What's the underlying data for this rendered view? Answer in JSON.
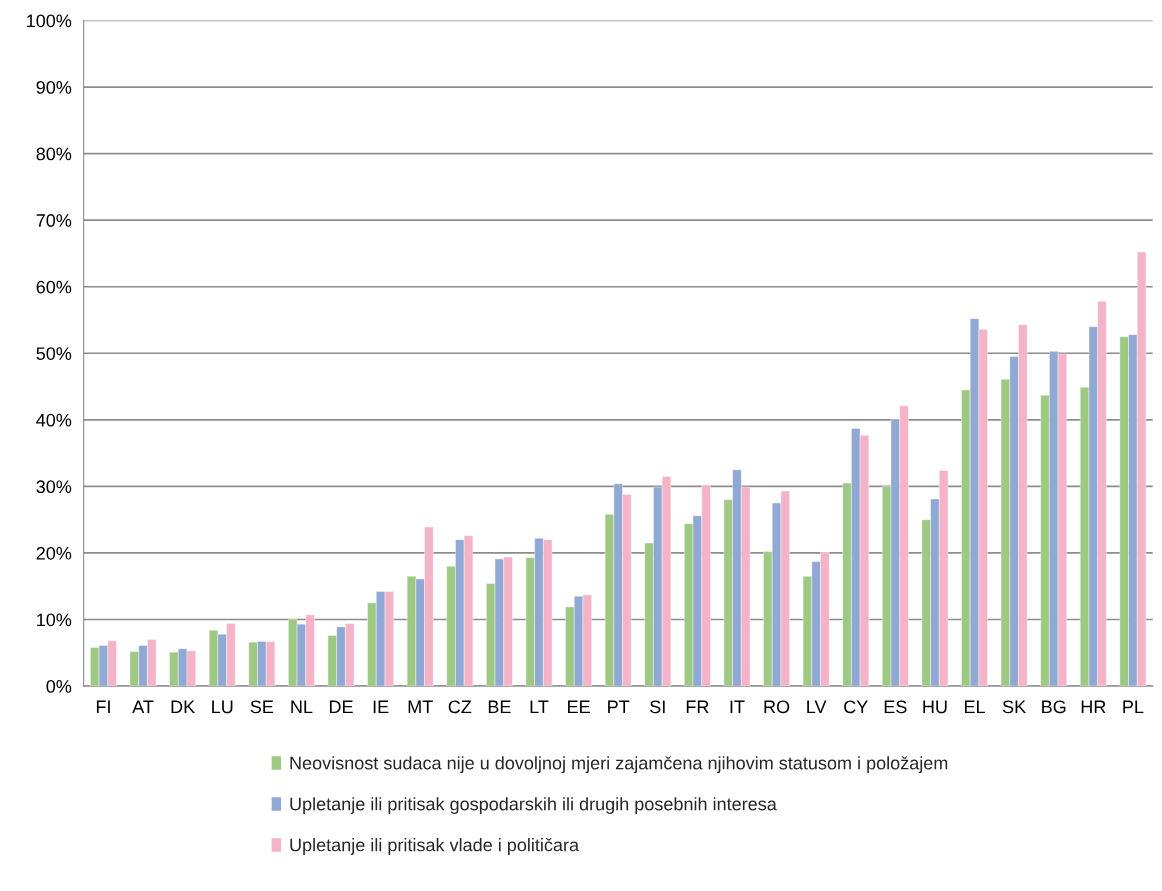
{
  "chart_data": {
    "type": "bar",
    "categories": [
      "FI",
      "AT",
      "DK",
      "LU",
      "SE",
      "NL",
      "DE",
      "IE",
      "MT",
      "CZ",
      "BE",
      "LT",
      "EE",
      "PT",
      "SI",
      "FR",
      "IT",
      "RO",
      "LV",
      "CY",
      "ES",
      "HU",
      "EL",
      "SK",
      "BG",
      "HR",
      "PL"
    ],
    "series": [
      {
        "name": "Neovisnost sudaca nije u dovoljnoj mjeri zajamčena njihovim statusom i položajem",
        "color": "#9dc983",
        "values": [
          5.8,
          5.2,
          5.1,
          8.4,
          6.6,
          10.0,
          7.6,
          12.5,
          16.5,
          18.0,
          15.4,
          19.3,
          11.9,
          25.8,
          21.5,
          24.4,
          28.0,
          20.2,
          16.5,
          30.5,
          30.0,
          25.0,
          44.5,
          46.1,
          43.7,
          44.9,
          52.5
        ]
      },
      {
        "name": "Upletanje ili pritisak gospodarskih ili drugih posebnih interesa",
        "color": "#8fa8d4",
        "values": [
          6.1,
          6.1,
          5.6,
          7.8,
          6.7,
          9.3,
          8.9,
          14.2,
          16.1,
          22.0,
          19.1,
          22.2,
          13.5,
          30.4,
          29.9,
          25.6,
          32.5,
          27.5,
          18.7,
          38.7,
          40.1,
          28.1,
          55.2,
          49.5,
          50.3,
          54.0,
          52.8
        ]
      },
      {
        "name": "Upletanje ili pritisak vlade i političara",
        "color": "#f4b3c6",
        "values": [
          6.8,
          7.0,
          5.3,
          9.4,
          6.7,
          10.7,
          9.4,
          14.2,
          23.9,
          22.6,
          19.4,
          22.0,
          13.7,
          28.8,
          31.5,
          30.2,
          29.9,
          29.3,
          20.1,
          37.7,
          42.1,
          32.4,
          53.6,
          54.3,
          49.9,
          57.8,
          65.2
        ]
      }
    ],
    "ylim": [
      0,
      100
    ],
    "yticks": [
      {
        "value": 0,
        "label": "0%"
      },
      {
        "value": 10,
        "label": "10%"
      },
      {
        "value": 20,
        "label": "20%"
      },
      {
        "value": 30,
        "label": "30%"
      },
      {
        "value": 40,
        "label": "40%"
      },
      {
        "value": 50,
        "label": "50%"
      },
      {
        "value": 60,
        "label": "60%"
      },
      {
        "value": 70,
        "label": "70%"
      },
      {
        "value": 80,
        "label": "80%"
      },
      {
        "value": 90,
        "label": "90%"
      },
      {
        "value": 100,
        "label": "100%"
      }
    ],
    "grid": "y",
    "legend": "bottom"
  }
}
